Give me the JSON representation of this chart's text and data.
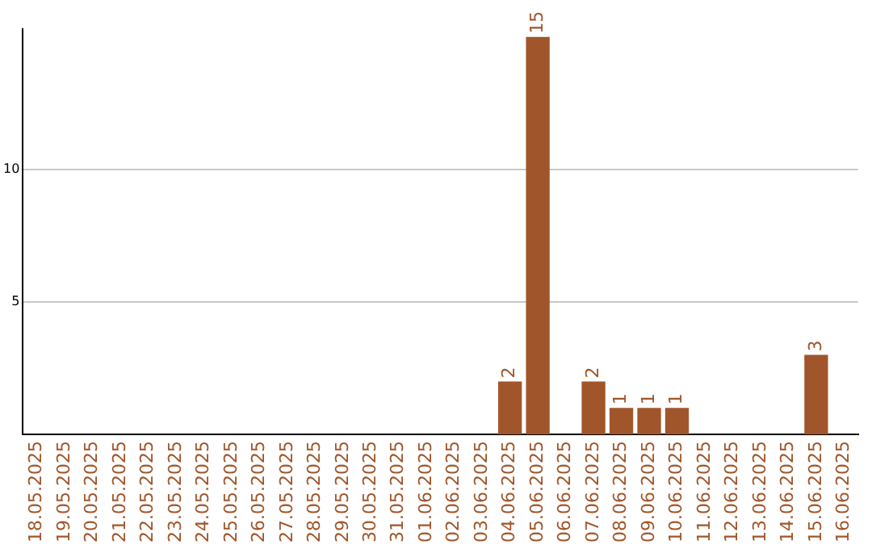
{
  "chart_data": {
    "type": "bar",
    "categories": [
      "18.05.2025",
      "19.05.2025",
      "20.05.2025",
      "21.05.2025",
      "22.05.2025",
      "23.05.2025",
      "24.05.2025",
      "25.05.2025",
      "26.05.2025",
      "27.05.2025",
      "28.05.2025",
      "29.05.2025",
      "30.05.2025",
      "31.05.2025",
      "01.06.2025",
      "02.06.2025",
      "03.06.2025",
      "04.06.2025",
      "05.06.2025",
      "06.06.2025",
      "07.06.2025",
      "08.06.2025",
      "09.06.2025",
      "10.06.2025",
      "11.06.2025",
      "12.06.2025",
      "13.06.2025",
      "14.06.2025",
      "15.06.2025",
      "16.06.2025"
    ],
    "values": [
      0,
      0,
      0,
      0,
      0,
      0,
      0,
      0,
      0,
      0,
      0,
      0,
      0,
      0,
      0,
      0,
      0,
      2,
      15,
      0,
      2,
      1,
      1,
      1,
      0,
      0,
      0,
      0,
      3,
      0
    ],
    "value_labels": [
      null,
      null,
      null,
      null,
      null,
      null,
      null,
      null,
      null,
      null,
      null,
      null,
      null,
      null,
      null,
      null,
      null,
      "2",
      "15",
      null,
      "2",
      "1",
      "1",
      "1",
      null,
      null,
      null,
      null,
      "3",
      null
    ],
    "color": "#a0562a",
    "ylim": [
      0,
      15.3
    ],
    "yticks": [
      5,
      10
    ],
    "grid": "y",
    "legend": false
  }
}
